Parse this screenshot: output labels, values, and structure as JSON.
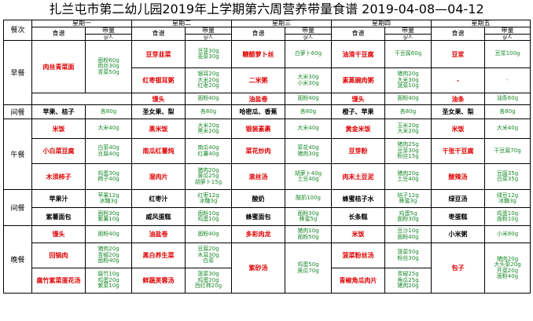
{
  "title": "扎兰屯市第二幼儿园2019年上学期第六周营养带量食谱 2019-04-08—04-12",
  "headers": {
    "meal_col": "餐次",
    "days": [
      "星期一",
      "星期二",
      "星期三",
      "星期四",
      "星期五"
    ],
    "recipe": "食谱",
    "amount": "带量",
    "unit": "g/人"
  },
  "meals": {
    "breakfast": "早餐",
    "snack1": "间餐",
    "lunch": "午餐",
    "snack2": "间餐",
    "dinner": "晚餐"
  },
  "rows": {
    "b1": [
      {
        "dish": "肉丝青菜面",
        "amounts": [
          "面粉60g",
          "肉丝30g",
          "青菜50g"
        ]
      },
      {
        "dish": "豆芽韭菜",
        "amounts": [
          "豆芽30g",
          "韭菜30g"
        ]
      },
      {
        "dish": "糖醋萝卜丝",
        "amounts": [
          "白萝卜60g"
        ]
      },
      {
        "dish": "油滑干豆腐",
        "amounts": [
          "干豆腐60g"
        ]
      },
      {
        "dish": "豆浆",
        "amounts": [
          "豆浆100g"
        ]
      }
    ],
    "b2": [
      {
        "dish": "红枣银耳粥",
        "amounts": [
          "银耳20g",
          "大米20g",
          "红枣20g"
        ]
      },
      {
        "dish": "二米粥",
        "amounts": [
          "大米30g",
          "小米30g"
        ]
      },
      {
        "dish": "素蒸豌肉粥",
        "amounts": [
          "猪肉20g",
          "大米30g",
          "菠菜10g"
        ]
      },
      {
        "dish": "-",
        "amounts": [
          "-"
        ]
      }
    ],
    "b3": [
      {
        "dish": "馒头",
        "amounts": [
          "面粉40g"
        ]
      },
      {
        "dish": "油盐卷",
        "amounts": [
          "面粉40g"
        ]
      },
      {
        "dish": "馒头",
        "amounts": [
          "面粉40g"
        ]
      },
      {
        "dish": "油条",
        "amounts": [
          "油条60g"
        ]
      }
    ],
    "s1": [
      {
        "dish": "苹果、桔子",
        "amounts": [
          "各80g"
        ]
      },
      {
        "dish": "圣女果、梨",
        "amounts": [
          "各80g"
        ]
      },
      {
        "dish": "哈密瓜、香蕉",
        "amounts": [
          "各80g"
        ]
      },
      {
        "dish": "橙子、苹果",
        "amounts": [
          "各80g"
        ]
      },
      {
        "dish": "圣女果、梨",
        "amounts": [
          "各80g"
        ]
      }
    ],
    "l1": [
      {
        "dish": "米饭",
        "amounts": [
          "大米40g"
        ]
      },
      {
        "dish": "黑米饭",
        "amounts": [
          "大米20g",
          "黑米20g"
        ]
      },
      {
        "dish": "银装素裹",
        "amounts": [
          "大米40g"
        ]
      },
      {
        "dish": "黄金米饭",
        "amounts": [
          "玉米20g",
          "大米20g"
        ]
      },
      {
        "dish": "米饭",
        "amounts": [
          "大米40g"
        ]
      }
    ],
    "l2": [
      {
        "dish": "小白菜豆腐",
        "amounts": [
          "白菜40g",
          "豆腐40g"
        ]
      },
      {
        "dish": "南瓜红薯炖",
        "amounts": [
          "南瓜40g",
          "红薯40g"
        ]
      },
      {
        "dish": "菜花炒肉",
        "amounts": [
          "菜花40g",
          "猪肉30g"
        ]
      },
      {
        "dish": "豆芽粉",
        "amounts": [
          "猪肉25g",
          "豆芽30g",
          "粉丝15g"
        ]
      },
      {
        "dish": "干张干豆腐",
        "amounts": [
          "干豆腐70g"
        ]
      }
    ],
    "l3": [
      {
        "dish": "木须柿子",
        "amounts": [
          "鸡蛋30g",
          "柿子40g"
        ]
      },
      {
        "dish": "溜肉片",
        "amounts": [
          "猪肉20g",
          "黄瓜25g",
          "胡萝卜15g"
        ]
      },
      {
        "dish": "滚丝汤",
        "amounts": [
          "胡萝卜40g",
          "土豆40g"
        ]
      },
      {
        "dish": "肉末土豆泥",
        "amounts": [
          "猪肉20g",
          "土豆40g"
        ]
      },
      {
        "dish": "酸辣汤",
        "amounts": [
          "豆腐35g",
          "白菜35g"
        ]
      }
    ],
    "s2a": [
      {
        "dish": "苹果汁",
        "amounts": [
          "苹果12g",
          "冰糖3g"
        ]
      },
      {
        "dish": "红枣汁",
        "amounts": [
          "红枣12g",
          "冰糖3g"
        ]
      },
      {
        "dish": "酸奶",
        "amounts": [
          "酸奶100g"
        ]
      },
      {
        "dish": "蜂蜜桔子水",
        "amounts": [
          "桔子12g",
          "蜂蜜3g"
        ]
      },
      {
        "dish": "绿豆汤",
        "amounts": [
          "绿豆12g",
          "冰糖3g"
        ]
      }
    ],
    "s2b": [
      {
        "dish": "紫薯面包",
        "amounts": [
          "面粉30g",
          "紫薯10g"
        ]
      },
      {
        "dish": "威风蛋糕",
        "amounts": [
          "面粉10g",
          "鸡蛋10g"
        ]
      },
      {
        "dish": "蜂蜜面包",
        "amounts": [
          "面粉30g",
          "蜂蜜5g"
        ]
      },
      {
        "dish": "长条糕",
        "amounts": [
          "鸡蛋5g",
          "面粉30g"
        ]
      },
      {
        "dish": "枣蛋糕",
        "amounts": [
          "鸡蛋10g",
          "面粉10g"
        ]
      }
    ],
    "d1": [
      {
        "dish": "馒头",
        "amounts": [
          "面粉40g"
        ]
      },
      {
        "dish": "油盐卷",
        "amounts": [
          "面粉40g"
        ]
      },
      {
        "dish": "多彩肉龙",
        "amounts": [
          "猪肉10g",
          "面粉50g"
        ]
      },
      {
        "dish": "米饭",
        "amounts": [
          "豆沙10g",
          "面粉40g"
        ]
      },
      {
        "dish": "小米粥",
        "amounts": [
          "小米80g"
        ]
      }
    ],
    "d2": [
      {
        "dish": "回锅肉",
        "amounts": [
          "猪肉20g",
          "青椒20g",
          "面粉40g"
        ]
      },
      {
        "dish": "黑白养生菜",
        "amounts": [
          "豆腐20g",
          "木耳30g",
          "白菜"
        ]
      },
      {
        "dish": "紫砂汤",
        "amounts": [
          "鸡蛋50g",
          "黄瓜70g"
        ]
      },
      {
        "dish": "菠菜粉丝汤",
        "amounts": [
          "菠菜50g",
          "粉丝30g"
        ]
      },
      {
        "dish": "包子",
        "amounts": [
          "猪肉20g",
          "大头菜20g",
          "芹菜20g",
          "面粉40g"
        ]
      }
    ],
    "d3": [
      {
        "dish": "腐竹紫菜蛋花汤",
        "amounts": [
          "腐竹10g",
          "鸡蛋20g",
          "紫菜10g"
        ]
      },
      {
        "dish": "鲜蔬芙蓉汤",
        "amounts": [
          "菠菜30g",
          "鸡蛋20g",
          "西红柿20g"
        ]
      },
      {
        "dish": "青椒角瓜肉片",
        "amounts": [
          "青椒25g",
          "角瓜25g",
          "猪肉20g"
        ]
      }
    ]
  }
}
